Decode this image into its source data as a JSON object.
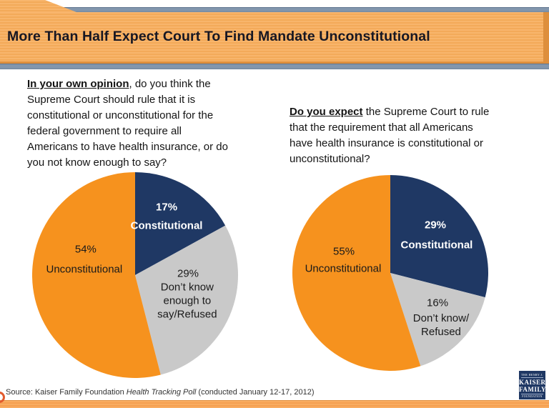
{
  "header": {
    "title": "More Than Half Expect Court To Find Mandate Unconstitutional"
  },
  "questions": {
    "left": {
      "lead": "In your own opinion",
      "lead_rest": ", do you think the",
      "lines": [
        "Supreme Court should rule that it is",
        "constitutional or unconstitutional for the",
        "federal government to require all",
        "Americans to have health insurance, or do",
        "you not know enough to say?"
      ]
    },
    "right": {
      "lead": "Do you expect",
      "lead_rest": " the Supreme Court to rule",
      "lines": [
        "that the requirement that all Americans",
        "have health insurance is constitutional or",
        "unconstitutional?"
      ]
    }
  },
  "chart_data": [
    {
      "type": "pie",
      "question": "In your own opinion, do you think the Supreme Court should rule that it is constitutional or unconstitutional for the federal government to require all Americans to have health insurance, or do you not know enough to say?",
      "labels": [
        "Constitutional",
        "Don’t know enough to say/Refused",
        "Unconstitutional"
      ],
      "values": [
        17,
        29,
        54
      ],
      "pct_labels": [
        "17%",
        "29%",
        "54%"
      ],
      "colors": [
        "#1F3864",
        "#C9C9C9",
        "#F6921E"
      ],
      "start_angle_deg": 0,
      "direction": "clockwise",
      "labels_position": "inside",
      "legend": "none"
    },
    {
      "type": "pie",
      "question": "Do you expect the Supreme Court to rule that the requirement that all Americans have health insurance is constitutional or unconstitutional?",
      "labels": [
        "Constitutional",
        "Don’t know/Refused",
        "Unconstitutional"
      ],
      "values": [
        29,
        16,
        55
      ],
      "pct_labels": [
        "29%",
        "16%",
        "55%"
      ],
      "colors": [
        "#1F3864",
        "#C9C9C9",
        "#F6921E"
      ],
      "start_angle_deg": 0,
      "direction": "clockwise",
      "labels_position": "inside",
      "legend": "none"
    }
  ],
  "pie_display": {
    "left_dk_lines": [
      "Don’t know",
      "enough to",
      "say/Refused"
    ],
    "right_dk_lines": [
      "Don’t know/",
      "Refused"
    ]
  },
  "footer": {
    "source_prefix": "Source: Kaiser Family Foundation ",
    "source_italic": "Health Tracking Poll",
    "source_suffix": " (conducted January 12-17, 2012)"
  },
  "logo": {
    "line1": "THE HENRY J.",
    "line2": "KAISER",
    "line3": "FAMILY",
    "line4": "FOUNDATION"
  },
  "colors": {
    "navy": "#1F3864",
    "orange": "#F6921E",
    "gray": "#C9C9C9",
    "banner_orange": "#F7B169",
    "banner_border": "#DE8F3C",
    "steel_bar": "#8296AD",
    "footer_bar": "#F9AC61",
    "swoosh_red": "#E25B2E",
    "title_text": "#171723"
  }
}
